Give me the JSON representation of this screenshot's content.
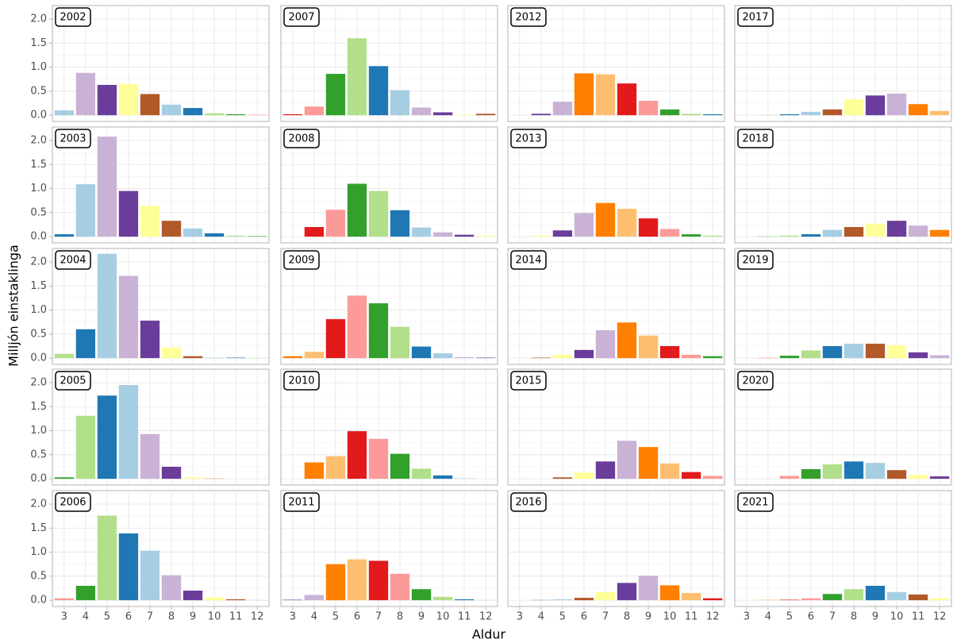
{
  "chart_data": {
    "type": "bar",
    "x_label": "Aldur",
    "y_label": "Milljón einstaklinga",
    "categories": [
      3,
      4,
      5,
      6,
      7,
      8,
      9,
      10,
      11,
      12
    ],
    "ylim": [
      -0.13,
      2.28
    ],
    "yticks": [
      {
        "value": 0,
        "label": "0.0"
      },
      {
        "value": 0.5,
        "label": "0.5"
      },
      {
        "value": 1,
        "label": "1.0"
      },
      {
        "value": 1.5,
        "label": "1.5"
      },
      {
        "value": 2,
        "label": "2.0"
      }
    ],
    "grid": true,
    "panels": [
      {
        "title": "2002",
        "values": [
          0.1,
          0.88,
          0.63,
          0.65,
          0.44,
          0.22,
          0.15,
          0.04,
          0.02,
          0.01
        ],
        "colors": [
          "#a6cee3",
          "#cab2d6",
          "#6a3d9a",
          "#ffff99",
          "#b15928",
          "#a6cee3",
          "#1f78b4",
          "#b2df8a",
          "#33a02c",
          "#fb9a99"
        ]
      },
      {
        "title": "2003",
        "values": [
          0.05,
          1.09,
          2.08,
          0.95,
          0.64,
          0.33,
          0.17,
          0.07,
          0.02,
          0.01
        ],
        "colors": [
          "#1f78b4",
          "#a6cee3",
          "#cab2d6",
          "#6a3d9a",
          "#ffff99",
          "#b15928",
          "#a6cee3",
          "#1f78b4",
          "#b2df8a",
          "#33a02c"
        ]
      },
      {
        "title": "2004",
        "values": [
          0.09,
          0.6,
          2.17,
          1.71,
          0.78,
          0.22,
          0.04,
          0.01,
          0.01,
          0.005
        ],
        "colors": [
          "#b2df8a",
          "#1f78b4",
          "#a6cee3",
          "#cab2d6",
          "#6a3d9a",
          "#ffff99",
          "#b15928",
          "#a6cee3",
          "#1f78b4",
          "#b2df8a"
        ]
      },
      {
        "title": "2005",
        "values": [
          0.03,
          1.31,
          1.73,
          1.95,
          0.93,
          0.25,
          0.03,
          0.005,
          0,
          0
        ],
        "colors": [
          "#33a02c",
          "#b2df8a",
          "#1f78b4",
          "#a6cee3",
          "#cab2d6",
          "#6a3d9a",
          "#ffff99",
          "#b15928",
          "#a6cee3",
          "#1f78b4"
        ]
      },
      {
        "title": "2006",
        "values": [
          0.04,
          0.3,
          1.76,
          1.39,
          1.03,
          0.52,
          0.2,
          0.06,
          0.02,
          0.005
        ],
        "colors": [
          "#fb9a99",
          "#33a02c",
          "#b2df8a",
          "#1f78b4",
          "#a6cee3",
          "#cab2d6",
          "#6a3d9a",
          "#ffff99",
          "#b15928",
          "#a6cee3"
        ]
      },
      {
        "title": "2007",
        "values": [
          0.02,
          0.18,
          0.86,
          1.6,
          1.02,
          0.52,
          0.16,
          0.06,
          0.01,
          0.03
        ],
        "colors": [
          "#e31a1c",
          "#fb9a99",
          "#33a02c",
          "#b2df8a",
          "#1f78b4",
          "#a6cee3",
          "#cab2d6",
          "#6a3d9a",
          "#ffff99",
          "#b15928"
        ]
      },
      {
        "title": "2008",
        "values": [
          0,
          0.2,
          0.56,
          1.1,
          0.95,
          0.55,
          0.19,
          0.09,
          0.04,
          0.02
        ],
        "colors": [
          "#fdbf6f",
          "#e31a1c",
          "#fb9a99",
          "#33a02c",
          "#b2df8a",
          "#1f78b4",
          "#a6cee3",
          "#cab2d6",
          "#6a3d9a",
          "#ffff99"
        ]
      },
      {
        "title": "2009",
        "values": [
          0.04,
          0.13,
          0.81,
          1.3,
          1.14,
          0.65,
          0.24,
          0.1,
          0.02,
          0.01
        ],
        "colors": [
          "#ff7f00",
          "#fdbf6f",
          "#e31a1c",
          "#fb9a99",
          "#33a02c",
          "#b2df8a",
          "#1f78b4",
          "#a6cee3",
          "#cab2d6",
          "#6a3d9a"
        ]
      },
      {
        "title": "2010",
        "values": [
          0,
          0.34,
          0.47,
          0.99,
          0.83,
          0.52,
          0.21,
          0.07,
          0.01,
          0
        ],
        "colors": [
          "#cab2d6",
          "#ff7f00",
          "#fdbf6f",
          "#e31a1c",
          "#fb9a99",
          "#33a02c",
          "#b2df8a",
          "#1f78b4",
          "#a6cee3",
          "#cab2d6"
        ]
      },
      {
        "title": "2011",
        "values": [
          0.01,
          0.11,
          0.75,
          0.85,
          0.82,
          0.55,
          0.23,
          0.07,
          0.02,
          0.005
        ],
        "colors": [
          "#6a3d9a",
          "#cab2d6",
          "#ff7f00",
          "#fdbf6f",
          "#e31a1c",
          "#fb9a99",
          "#33a02c",
          "#b2df8a",
          "#1f78b4",
          "#a6cee3"
        ]
      },
      {
        "title": "2012",
        "values": [
          0,
          0.03,
          0.28,
          0.87,
          0.85,
          0.66,
          0.3,
          0.12,
          0.03,
          0.02
        ],
        "colors": [
          "#ffff99",
          "#6a3d9a",
          "#cab2d6",
          "#ff7f00",
          "#fdbf6f",
          "#e31a1c",
          "#fb9a99",
          "#33a02c",
          "#b2df8a",
          "#1f78b4"
        ]
      },
      {
        "title": "2013",
        "values": [
          0,
          0.02,
          0.13,
          0.49,
          0.7,
          0.58,
          0.38,
          0.16,
          0.05,
          0.02
        ],
        "colors": [
          "#b15928",
          "#ffff99",
          "#6a3d9a",
          "#cab2d6",
          "#ff7f00",
          "#fdbf6f",
          "#e31a1c",
          "#fb9a99",
          "#33a02c",
          "#b2df8a"
        ]
      },
      {
        "title": "2014",
        "values": [
          0,
          0.01,
          0.07,
          0.17,
          0.58,
          0.74,
          0.47,
          0.25,
          0.07,
          0.04
        ],
        "colors": [
          "#a6cee3",
          "#b15928",
          "#ffff99",
          "#6a3d9a",
          "#cab2d6",
          "#ff7f00",
          "#fdbf6f",
          "#e31a1c",
          "#fb9a99",
          "#33a02c"
        ]
      },
      {
        "title": "2015",
        "values": [
          0,
          0,
          0.03,
          0.13,
          0.36,
          0.79,
          0.66,
          0.32,
          0.14,
          0.06
        ],
        "colors": [
          "#1f78b4",
          "#a6cee3",
          "#b15928",
          "#ffff99",
          "#6a3d9a",
          "#cab2d6",
          "#ff7f00",
          "#fdbf6f",
          "#e31a1c",
          "#fb9a99"
        ]
      },
      {
        "title": "2016",
        "values": [
          0,
          0.005,
          0.02,
          0.05,
          0.17,
          0.36,
          0.51,
          0.31,
          0.15,
          0.04
        ],
        "colors": [
          "#b2df8a",
          "#1f78b4",
          "#a6cee3",
          "#b15928",
          "#ffff99",
          "#6a3d9a",
          "#cab2d6",
          "#ff7f00",
          "#fdbf6f",
          "#e31a1c"
        ]
      },
      {
        "title": "2017",
        "values": [
          0,
          0.005,
          0.02,
          0.07,
          0.12,
          0.33,
          0.41,
          0.45,
          0.23,
          0.09
        ],
        "colors": [
          "#33a02c",
          "#b2df8a",
          "#1f78b4",
          "#a6cee3",
          "#b15928",
          "#ffff99",
          "#6a3d9a",
          "#cab2d6",
          "#ff7f00",
          "#fdbf6f"
        ]
      },
      {
        "title": "2018",
        "values": [
          0,
          0.005,
          0.02,
          0.05,
          0.14,
          0.2,
          0.27,
          0.33,
          0.23,
          0.14
        ],
        "colors": [
          "#fb9a99",
          "#33a02c",
          "#b2df8a",
          "#1f78b4",
          "#a6cee3",
          "#b15928",
          "#ffff99",
          "#6a3d9a",
          "#cab2d6",
          "#ff7f00"
        ]
      },
      {
        "title": "2019",
        "values": [
          0,
          0.01,
          0.05,
          0.16,
          0.25,
          0.3,
          0.3,
          0.27,
          0.12,
          0.06
        ],
        "colors": [
          "#e31a1c",
          "#fb9a99",
          "#33a02c",
          "#b2df8a",
          "#1f78b4",
          "#a6cee3",
          "#b15928",
          "#ffff99",
          "#6a3d9a",
          "#cab2d6"
        ]
      },
      {
        "title": "2020",
        "values": [
          0,
          0,
          0.06,
          0.2,
          0.3,
          0.36,
          0.33,
          0.18,
          0.08,
          0.05
        ],
        "colors": [
          "#fdbf6f",
          "#e31a1c",
          "#fb9a99",
          "#33a02c",
          "#b2df8a",
          "#1f78b4",
          "#a6cee3",
          "#b15928",
          "#ffff99",
          "#6a3d9a"
        ]
      },
      {
        "title": "2021",
        "values": [
          0,
          0.01,
          0.01,
          0.04,
          0.13,
          0.23,
          0.3,
          0.17,
          0.12,
          0.04
        ],
        "colors": [
          "#ff7f00",
          "#fdbf6f",
          "#e31a1c",
          "#fb9a99",
          "#33a02c",
          "#b2df8a",
          "#1f78b4",
          "#a6cee3",
          "#b15928",
          "#ffff99"
        ]
      }
    ]
  }
}
